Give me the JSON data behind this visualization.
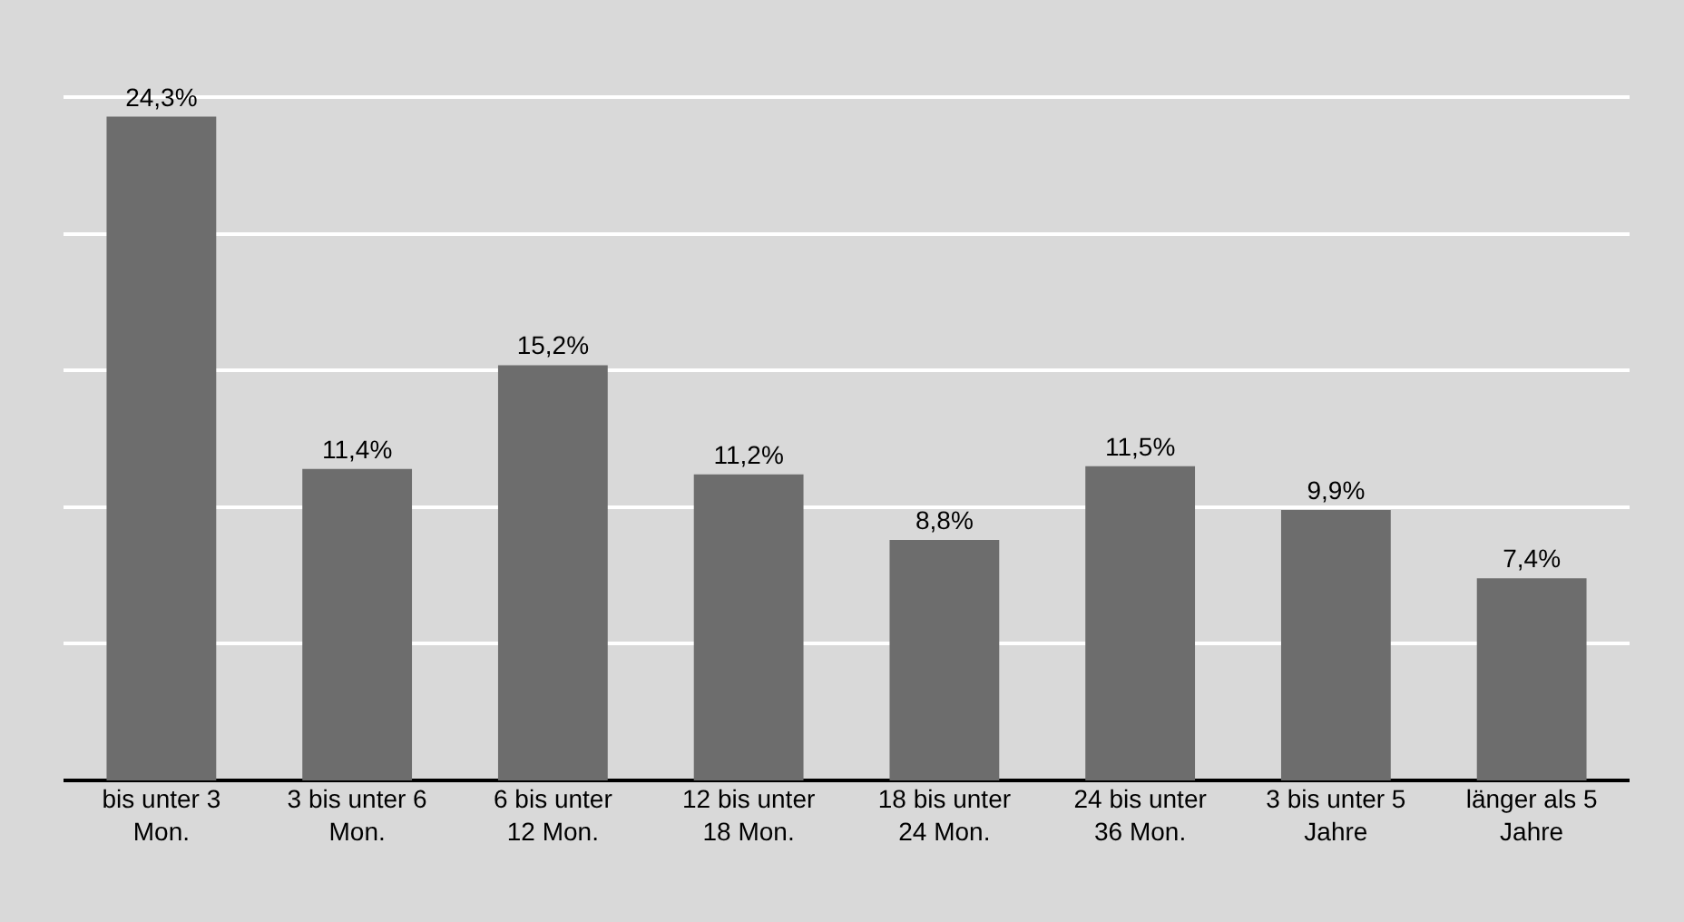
{
  "chart_data": {
    "type": "bar",
    "categories": [
      "bis unter 3 Mon.",
      "3 bis unter 6 Mon.",
      "6 bis unter 12 Mon.",
      "12 bis unter 18 Mon.",
      "18 bis unter 24 Mon.",
      "24 bis unter 36 Mon.",
      "3 bis unter 5 Jahre",
      "länger als 5 Jahre"
    ],
    "values": [
      24.3,
      11.4,
      15.2,
      11.2,
      8.8,
      11.5,
      9.9,
      7.4
    ],
    "value_labels": [
      "24,3%",
      "11,4%",
      "15,2%",
      "11,2%",
      "8,8%",
      "11,5%",
      "9,9%",
      "7,4%"
    ],
    "color": "#6d6d6d",
    "grid": "y",
    "tick_labels": "x"
  }
}
